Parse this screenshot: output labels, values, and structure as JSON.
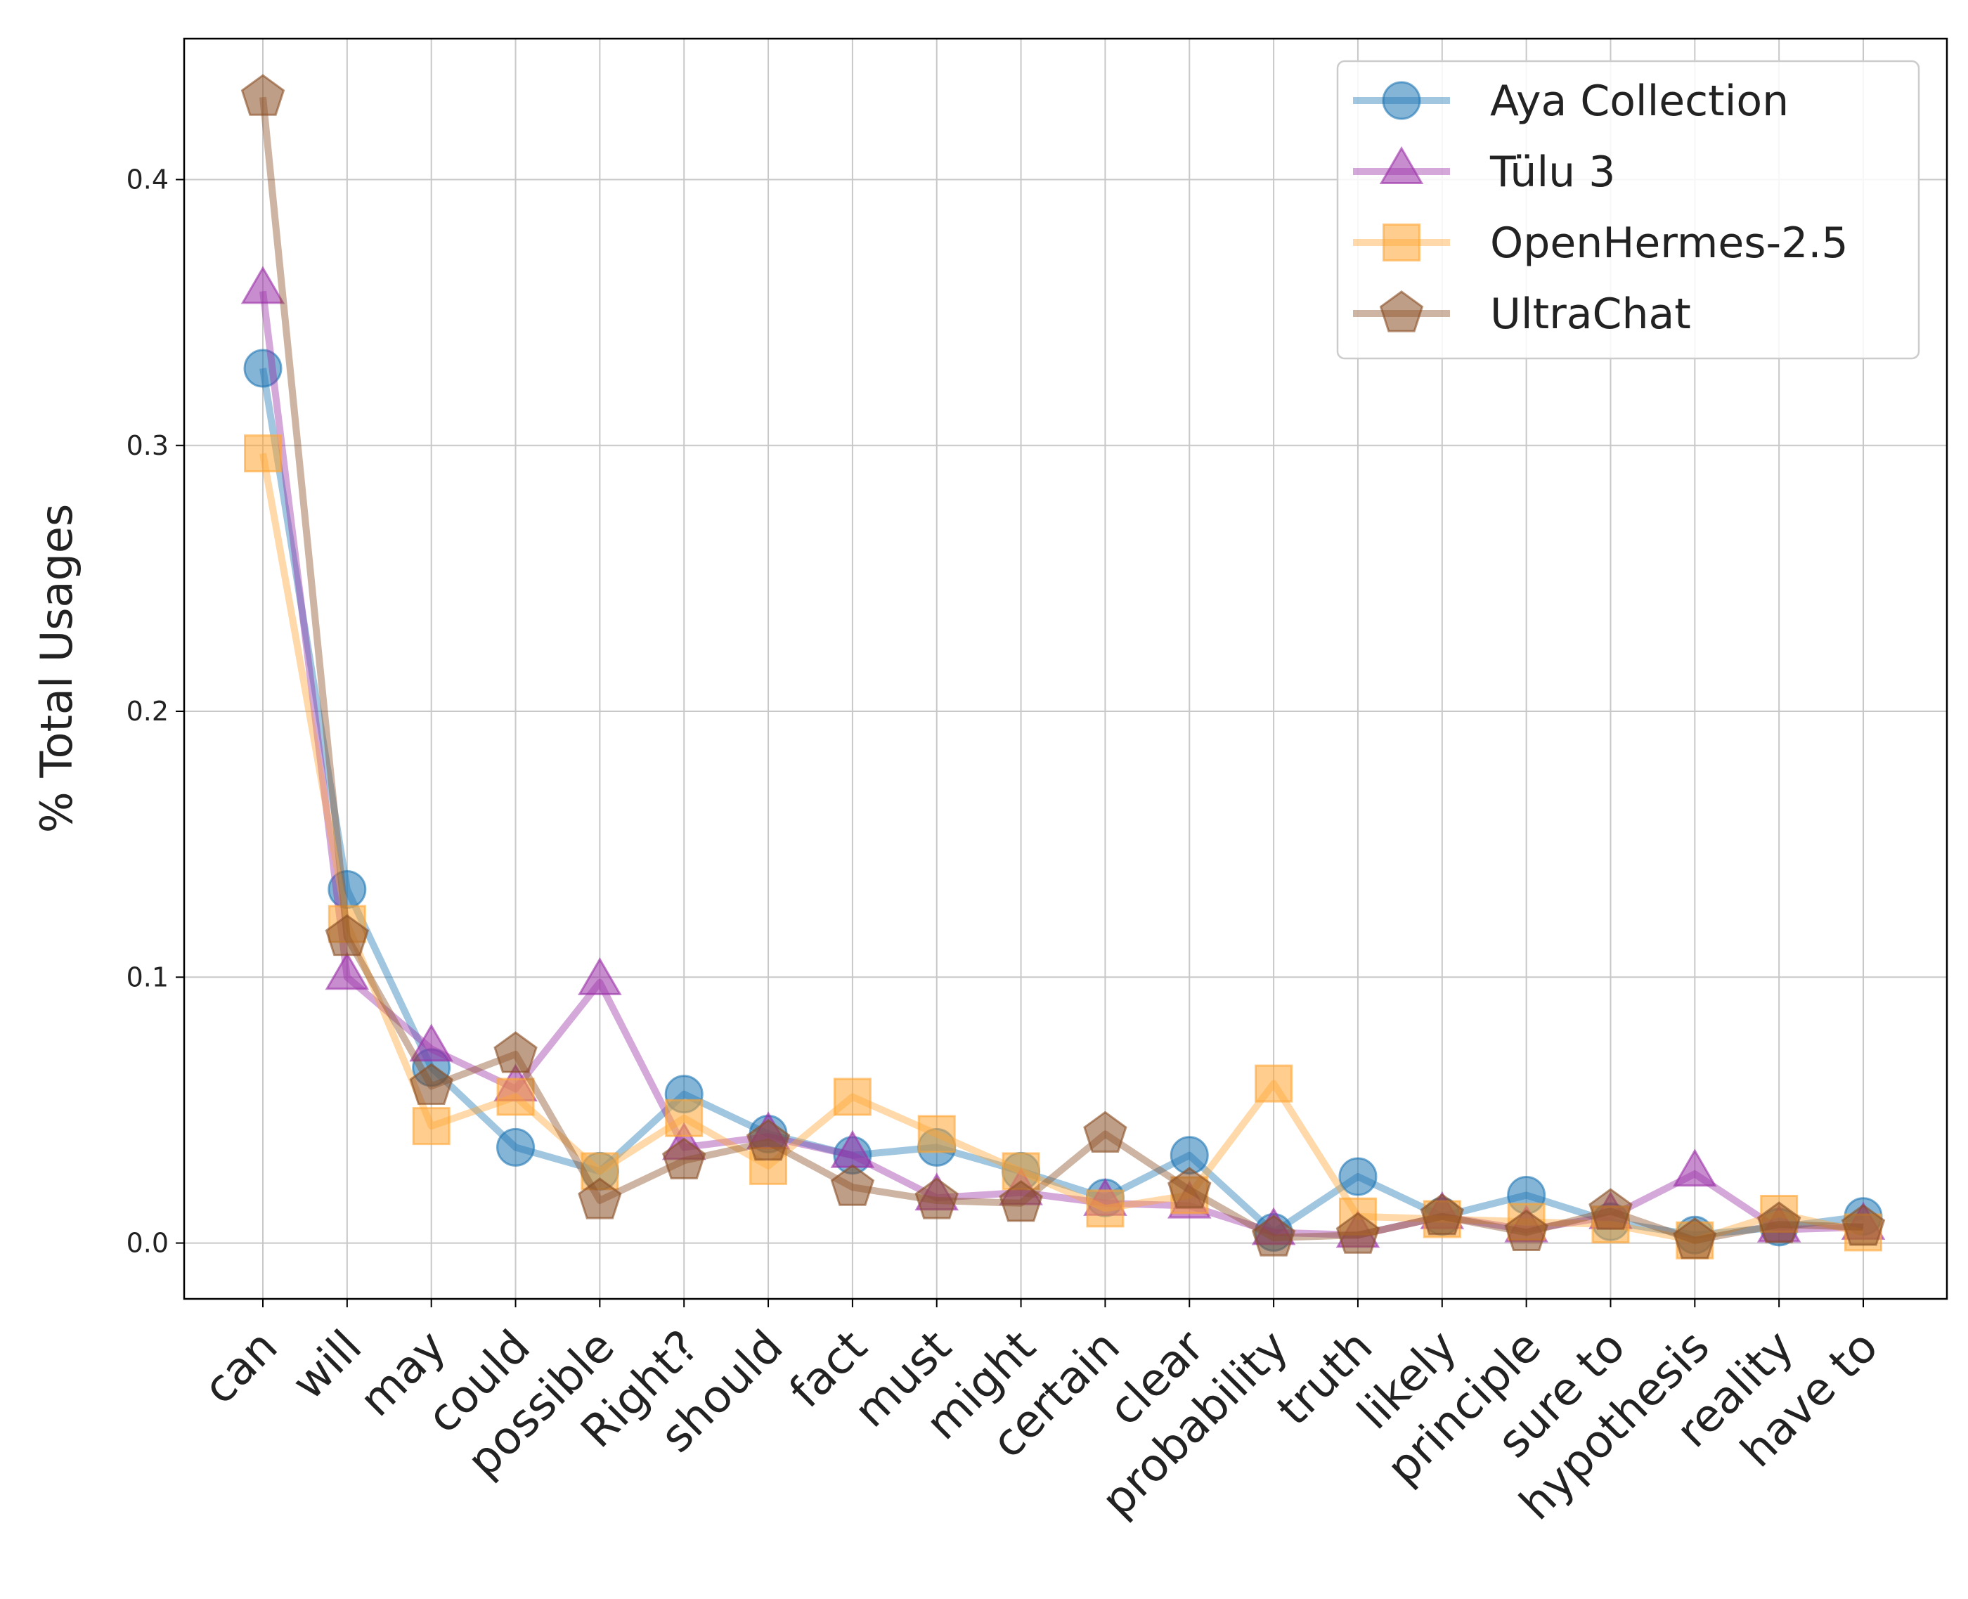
{
  "chart_data": {
    "type": "line",
    "title": "",
    "xlabel": "",
    "ylabel": "% Total Usages",
    "ylim": [
      -0.021,
      0.453
    ],
    "yticks": [
      0.0,
      0.1,
      0.2,
      0.3,
      0.4
    ],
    "ytick_labels": [
      "0.0",
      "0.1",
      "0.2",
      "0.3",
      "0.4"
    ],
    "grid": true,
    "legend_position": "top-right",
    "categories": [
      "can",
      "will",
      "may",
      "could",
      "possible",
      "Right?",
      "should",
      "fact",
      "must",
      "might",
      "certain",
      "clear",
      "probability",
      "truth",
      "likely",
      "principle",
      "sure to",
      "hypothesis",
      "reality",
      "have to"
    ],
    "series": [
      {
        "name": "Aya Collection",
        "color": "#1f77b4",
        "marker": "circle",
        "values": [
          0.329,
          0.133,
          0.066,
          0.036,
          0.027,
          0.056,
          0.041,
          0.033,
          0.036,
          0.027,
          0.017,
          0.033,
          0.004,
          0.025,
          0.01,
          0.018,
          0.008,
          0.003,
          0.006,
          0.01
        ]
      },
      {
        "name": "Tülu 3",
        "color": "#9b30a8",
        "marker": "triangle",
        "values": [
          0.358,
          0.1,
          0.073,
          0.058,
          0.098,
          0.036,
          0.04,
          0.033,
          0.017,
          0.019,
          0.015,
          0.014,
          0.004,
          0.003,
          0.01,
          0.005,
          0.01,
          0.026,
          0.005,
          0.006
        ]
      },
      {
        "name": "OpenHermes-2.5",
        "color": "#ffa533",
        "marker": "square",
        "values": [
          0.297,
          0.12,
          0.044,
          0.055,
          0.027,
          0.047,
          0.029,
          0.055,
          0.041,
          0.027,
          0.013,
          0.018,
          0.06,
          0.01,
          0.009,
          0.008,
          0.007,
          0.001,
          0.011,
          0.004
        ]
      },
      {
        "name": "UltraChat",
        "color": "#8b4e24",
        "marker": "pentagon",
        "values": [
          0.431,
          0.115,
          0.059,
          0.071,
          0.016,
          0.031,
          0.038,
          0.021,
          0.016,
          0.015,
          0.041,
          0.02,
          0.002,
          0.003,
          0.01,
          0.004,
          0.012,
          0.001,
          0.007,
          0.006
        ]
      }
    ]
  }
}
